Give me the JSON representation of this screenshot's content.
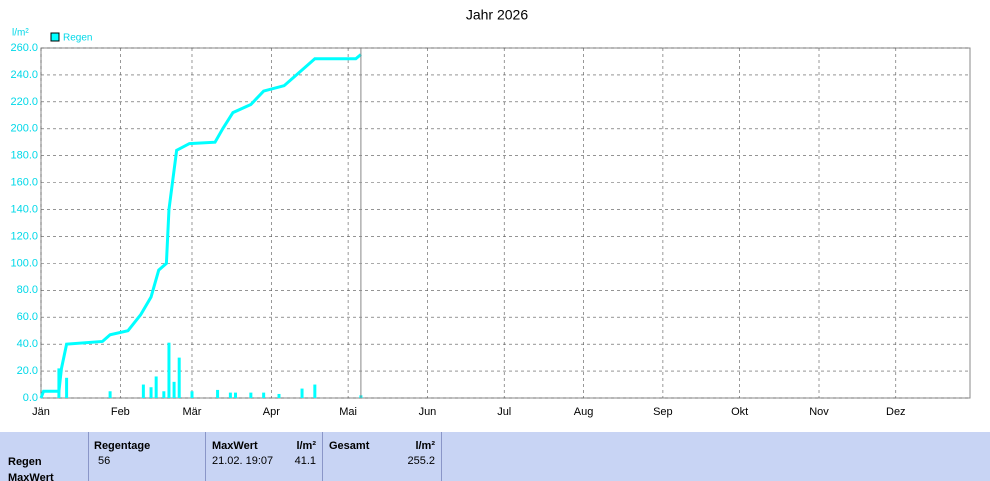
{
  "chart_data": {
    "type": "line",
    "title": "Jahr 2026",
    "y_label": "l/m²",
    "series": [
      {
        "name": "Regen",
        "color": "#00ffff",
        "x": [
          0,
          1,
          7,
          8,
          10,
          24,
          27,
          34,
          39,
          43,
          46,
          49,
          50,
          53,
          58,
          68,
          71,
          75,
          82,
          87,
          95,
          101,
          107,
          123,
          125
        ],
        "values": [
          0,
          5,
          5,
          22,
          40,
          42,
          47,
          50,
          62,
          75,
          95,
          100,
          140,
          184,
          189,
          190,
          200,
          212,
          218,
          228,
          232,
          242,
          252,
          252,
          255.2
        ]
      }
    ],
    "bars": {
      "color": "#00ffff",
      "x": [
        7,
        10,
        27,
        40,
        43,
        45,
        48,
        50,
        52,
        54,
        59,
        69,
        74,
        76,
        82,
        87,
        93,
        102,
        107,
        125
      ],
      "values": [
        22,
        15,
        5,
        10,
        8,
        16,
        5,
        41.1,
        12,
        30,
        5,
        6,
        4,
        4,
        4,
        4,
        3,
        7,
        10,
        2
      ]
    },
    "xlim": [
      0,
      363
    ],
    "xticks": [
      {
        "value": 0,
        "label": "Jän"
      },
      {
        "value": 31,
        "label": "Feb"
      },
      {
        "value": 59,
        "label": "Mär"
      },
      {
        "value": 90,
        "label": "Apr"
      },
      {
        "value": 120,
        "label": "Mai"
      },
      {
        "value": 151,
        "label": "Jun"
      },
      {
        "value": 181,
        "label": "Jul"
      },
      {
        "value": 212,
        "label": "Aug"
      },
      {
        "value": 243,
        "label": "Sep"
      },
      {
        "value": 273,
        "label": "Okt"
      },
      {
        "value": 304,
        "label": "Nov"
      },
      {
        "value": 334,
        "label": "Dez"
      }
    ],
    "ylim": [
      0,
      260
    ],
    "yticks": [
      {
        "value": 0,
        "label": "0.0"
      },
      {
        "value": 20,
        "label": "20.0"
      },
      {
        "value": 40,
        "label": "40.0"
      },
      {
        "value": 60,
        "label": "60.0"
      },
      {
        "value": 80,
        "label": "80.0"
      },
      {
        "value": 100,
        "label": "100.0"
      },
      {
        "value": 120,
        "label": "120.0"
      },
      {
        "value": 140,
        "label": "140.0"
      },
      {
        "value": 160,
        "label": "160.0"
      },
      {
        "value": 180,
        "label": "180.0"
      },
      {
        "value": 200,
        "label": "200.0"
      },
      {
        "value": 220,
        "label": "220.0"
      },
      {
        "value": 240,
        "label": "240.0"
      },
      {
        "value": 260,
        "label": "260.0"
      }
    ],
    "grid": true,
    "tick_color": "#00d8e8"
  },
  "table": {
    "headers": [
      "Regentage",
      "MaxWert",
      "l/m²",
      "Gesamt",
      "l/m²"
    ],
    "rows": [
      {
        "label": "Regen",
        "values": [
          "56",
          "21.02.  19:07",
          "41.1",
          "255.2"
        ]
      },
      {
        "label": "MaxWert"
      }
    ]
  }
}
